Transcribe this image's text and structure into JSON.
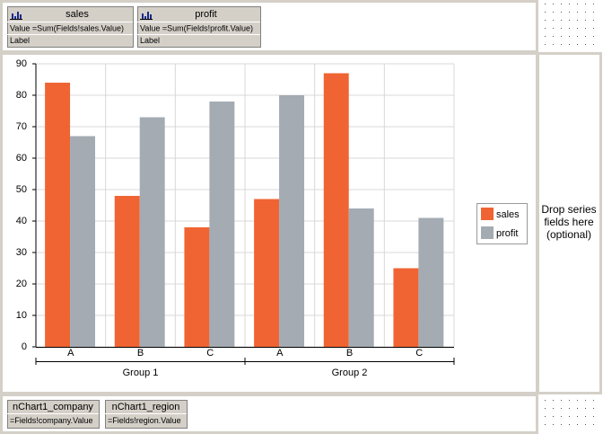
{
  "data_fields": [
    {
      "name": "sales",
      "value": "Value =Sum(Fields!sales.Value)",
      "label": "Label"
    },
    {
      "name": "profit",
      "value": "Value =Sum(Fields!profit.Value)",
      "label": "Label"
    }
  ],
  "category_fields": [
    {
      "name": "nChart1_company",
      "expression": "=Fields!company.Value"
    },
    {
      "name": "nChart1_region",
      "expression": "=Fields!region.Value"
    }
  ],
  "series_drop_hint": "Drop series fields here (optional)",
  "chart_data": {
    "type": "bar",
    "categories": [
      "A",
      "B",
      "C",
      "A",
      "B",
      "C"
    ],
    "groups": [
      "Group 1",
      "Group 2"
    ],
    "series": [
      {
        "name": "sales",
        "color": "#f06433",
        "values": [
          84,
          48,
          38,
          47,
          87,
          25
        ]
      },
      {
        "name": "profit",
        "color": "#a4abb3",
        "values": [
          67,
          73,
          78,
          80,
          44,
          41
        ]
      }
    ],
    "ylim": [
      0,
      90
    ],
    "yticks": [
      0,
      10,
      20,
      30,
      40,
      50,
      60,
      70,
      80,
      90
    ],
    "grid": true,
    "legend": "right"
  }
}
